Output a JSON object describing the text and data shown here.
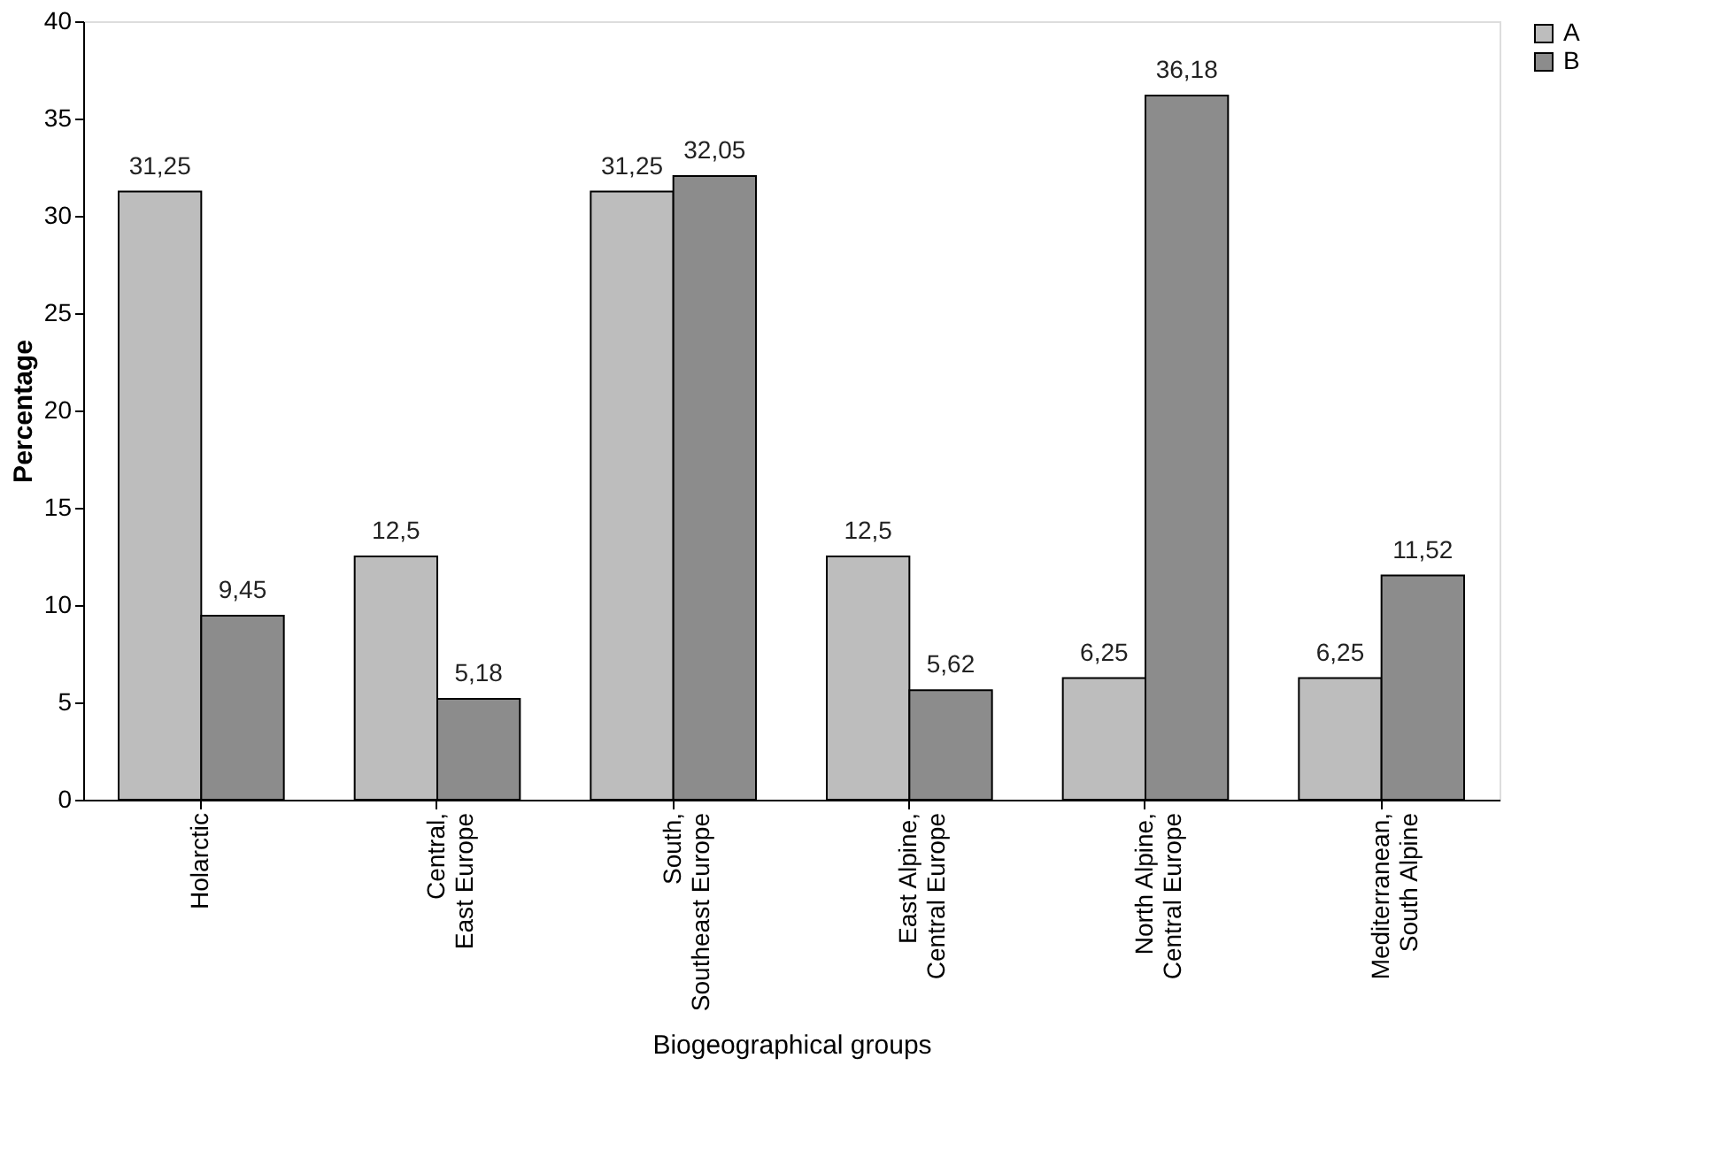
{
  "chart_data": {
    "type": "bar",
    "xlabel": "Biogeographical groups",
    "ylabel": "Percentage",
    "categories": [
      "Holarctic",
      "Central, East Europe",
      "South, Southeast Europe",
      "East Alpine, Central Europe",
      "North Alpine, Central Europe",
      "Mediterranean, South Alpine"
    ],
    "series": [
      {
        "name": "A",
        "color": "#bdbdbd",
        "values": [
          31.25,
          12.5,
          31.25,
          12.5,
          6.25,
          6.25
        ],
        "value_labels": [
          "31,25",
          "12,5",
          "31,25",
          "12,5",
          "6,25",
          "6,25"
        ]
      },
      {
        "name": "B",
        "color": "#8c8c8c",
        "values": [
          9.45,
          5.18,
          32.05,
          5.62,
          36.18,
          11.52
        ],
        "value_labels": [
          "9,45",
          "5,18",
          "32,05",
          "5,62",
          "36,18",
          "11,52"
        ]
      }
    ],
    "ylim": [
      0,
      40
    ],
    "yticks": [
      0,
      5,
      10,
      15,
      20,
      25,
      30,
      35,
      40
    ],
    "grid": false,
    "legend": "right"
  }
}
